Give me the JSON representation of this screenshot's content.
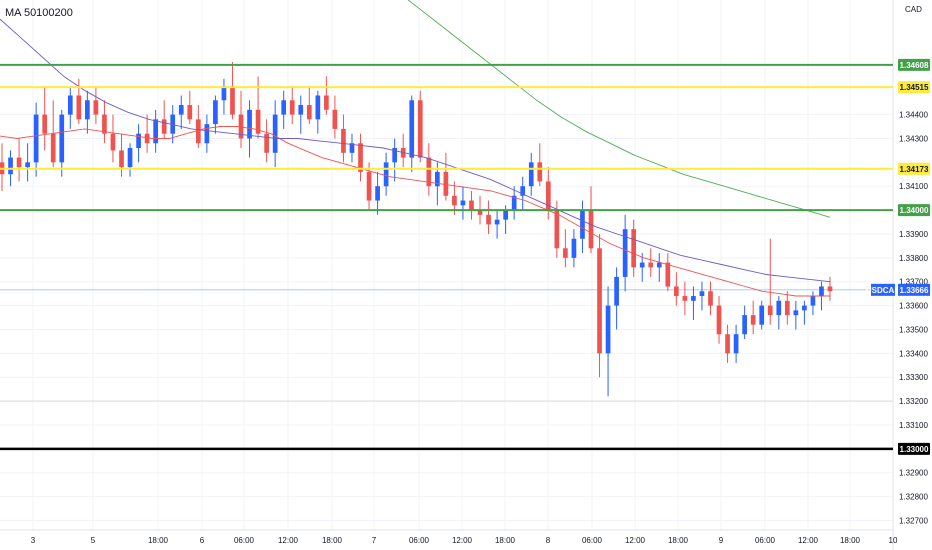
{
  "indicator_label": "MA 50100200",
  "currency_label": "CAD",
  "colors": {
    "bull": "#2962ff",
    "bear": "#ef5350",
    "ma50": "#ef5350",
    "ma100": "#6a5acd",
    "ma200": "#4caf50",
    "green_line": "#43a047",
    "yellow_line": "#ffeb3b",
    "black_line": "#000000",
    "price_tag": "#2962ff"
  },
  "chart_data": {
    "type": "candlestick",
    "symbol": "USDCAD",
    "last_price": "1.33666",
    "ylim": [
      1.3266,
      1.3488
    ],
    "y_ticks": [
      "1.34400",
      "1.34300",
      "1.34100",
      "1.33900",
      "1.33800",
      "1.33700",
      "1.33600",
      "1.33500",
      "1.33400",
      "1.33300",
      "1.33200",
      "1.33100",
      "1.32900",
      "1.32800",
      "1.32700"
    ],
    "x_ticks": [
      "3",
      "5",
      "18:00",
      "6",
      "06:00",
      "12:00",
      "18:00",
      "7",
      "06:00",
      "12:00",
      "18:00",
      "8",
      "06:00",
      "12:00",
      "18:00",
      "9",
      "06:00",
      "12:00",
      "18:00",
      "10"
    ],
    "horizontal_levels": [
      {
        "value": 1.34608,
        "label": "1.34608",
        "style": "green"
      },
      {
        "value": 1.34515,
        "label": "1.34515",
        "style": "yellow"
      },
      {
        "value": 1.34173,
        "label": "1.34173",
        "style": "yellow"
      },
      {
        "value": 1.34,
        "label": "1.34000",
        "style": "green"
      },
      {
        "value": 1.33,
        "label": "1.33000",
        "style": "black"
      }
    ],
    "candles": [
      [
        1.342,
        1.3428,
        1.3408,
        1.3415
      ],
      [
        1.3415,
        1.3425,
        1.341,
        1.3422
      ],
      [
        1.3422,
        1.343,
        1.3412,
        1.3418
      ],
      [
        1.3418,
        1.3428,
        1.3412,
        1.342
      ],
      [
        1.342,
        1.3445,
        1.3414,
        1.344
      ],
      [
        1.344,
        1.3452,
        1.3425,
        1.3432
      ],
      [
        1.3432,
        1.3446,
        1.3418,
        1.342
      ],
      [
        1.342,
        1.3442,
        1.3414,
        1.344
      ],
      [
        1.344,
        1.3452,
        1.3434,
        1.3448
      ],
      [
        1.3448,
        1.3455,
        1.3436,
        1.3438
      ],
      [
        1.3438,
        1.345,
        1.3432,
        1.3446
      ],
      [
        1.3446,
        1.3452,
        1.3436,
        1.344
      ],
      [
        1.344,
        1.3446,
        1.3428,
        1.3432
      ],
      [
        1.3432,
        1.344,
        1.342,
        1.3425
      ],
      [
        1.3425,
        1.3432,
        1.3414,
        1.3418
      ],
      [
        1.3418,
        1.3428,
        1.3414,
        1.3426
      ],
      [
        1.3426,
        1.3436,
        1.342,
        1.3432
      ],
      [
        1.3432,
        1.344,
        1.3424,
        1.3428
      ],
      [
        1.3428,
        1.3442,
        1.3424,
        1.3438
      ],
      [
        1.3438,
        1.3446,
        1.343,
        1.3432
      ],
      [
        1.3432,
        1.3444,
        1.3428,
        1.344
      ],
      [
        1.344,
        1.3448,
        1.3434,
        1.3444
      ],
      [
        1.3444,
        1.345,
        1.3436,
        1.3438
      ],
      [
        1.3438,
        1.3444,
        1.3426,
        1.3428
      ],
      [
        1.3428,
        1.344,
        1.3424,
        1.3436
      ],
      [
        1.3436,
        1.3448,
        1.3432,
        1.3446
      ],
      [
        1.3446,
        1.3455,
        1.344,
        1.3452
      ],
      [
        1.3452,
        1.3462,
        1.3438,
        1.344
      ],
      [
        1.344,
        1.345,
        1.3426,
        1.343
      ],
      [
        1.343,
        1.3446,
        1.3422,
        1.3442
      ],
      [
        1.3442,
        1.3456,
        1.343,
        1.3432
      ],
      [
        1.3432,
        1.3438,
        1.342,
        1.3424
      ],
      [
        1.3424,
        1.3446,
        1.3418,
        1.344
      ],
      [
        1.344,
        1.345,
        1.3434,
        1.3446
      ],
      [
        1.3446,
        1.3452,
        1.3436,
        1.344
      ],
      [
        1.344,
        1.3448,
        1.3432,
        1.3444
      ],
      [
        1.3444,
        1.3452,
        1.3436,
        1.3438
      ],
      [
        1.3438,
        1.345,
        1.3432,
        1.3448
      ],
      [
        1.3448,
        1.3456,
        1.344,
        1.3442
      ],
      [
        1.3442,
        1.3448,
        1.343,
        1.3434
      ],
      [
        1.3434,
        1.344,
        1.342,
        1.3424
      ],
      [
        1.3424,
        1.3432,
        1.342,
        1.3428
      ],
      [
        1.3428,
        1.3432,
        1.3412,
        1.3416
      ],
      [
        1.3416,
        1.342,
        1.34,
        1.3404
      ],
      [
        1.3404,
        1.3416,
        1.3398,
        1.341
      ],
      [
        1.341,
        1.3424,
        1.3406,
        1.342
      ],
      [
        1.342,
        1.343,
        1.3412,
        1.3426
      ],
      [
        1.3426,
        1.3432,
        1.3418,
        1.3422
      ],
      [
        1.3422,
        1.3448,
        1.3416,
        1.3446
      ],
      [
        1.3446,
        1.345,
        1.342,
        1.3422
      ],
      [
        1.3422,
        1.3428,
        1.3406,
        1.341
      ],
      [
        1.341,
        1.342,
        1.3402,
        1.3416
      ],
      [
        1.3416,
        1.3424,
        1.3404,
        1.3406
      ],
      [
        1.3406,
        1.3412,
        1.3398,
        1.3402
      ],
      [
        1.3402,
        1.341,
        1.3396,
        1.3404
      ],
      [
        1.3404,
        1.3408,
        1.3396,
        1.34
      ],
      [
        1.34,
        1.3406,
        1.3394,
        1.3398
      ],
      [
        1.3398,
        1.3404,
        1.339,
        1.3394
      ],
      [
        1.3394,
        1.34,
        1.3388,
        1.3396
      ],
      [
        1.3396,
        1.3402,
        1.339,
        1.34
      ],
      [
        1.34,
        1.341,
        1.3396,
        1.3406
      ],
      [
        1.3406,
        1.3414,
        1.34,
        1.341
      ],
      [
        1.341,
        1.3424,
        1.3406,
        1.342
      ],
      [
        1.342,
        1.3428,
        1.341,
        1.3412
      ],
      [
        1.3412,
        1.3418,
        1.3396,
        1.34
      ],
      [
        1.34,
        1.3404,
        1.338,
        1.3384
      ],
      [
        1.3384,
        1.3392,
        1.3376,
        1.338
      ],
      [
        1.338,
        1.3392,
        1.3376,
        1.3388
      ],
      [
        1.3388,
        1.3404,
        1.3382,
        1.34
      ],
      [
        1.34,
        1.341,
        1.3382,
        1.3384
      ],
      [
        1.3384,
        1.339,
        1.333,
        1.334
      ],
      [
        1.334,
        1.3368,
        1.3322,
        1.336
      ],
      [
        1.336,
        1.3376,
        1.335,
        1.3372
      ],
      [
        1.3372,
        1.3398,
        1.3366,
        1.3392
      ],
      [
        1.3392,
        1.3396,
        1.3372,
        1.3376
      ],
      [
        1.3376,
        1.3382,
        1.337,
        1.3378
      ],
      [
        1.3378,
        1.3384,
        1.3372,
        1.3376
      ],
      [
        1.3376,
        1.3382,
        1.337,
        1.3378
      ],
      [
        1.3378,
        1.3382,
        1.3366,
        1.3368
      ],
      [
        1.3368,
        1.3374,
        1.336,
        1.3364
      ],
      [
        1.3364,
        1.337,
        1.3356,
        1.3362
      ],
      [
        1.3362,
        1.3368,
        1.3354,
        1.3364
      ],
      [
        1.3364,
        1.337,
        1.3358,
        1.3366
      ],
      [
        1.3366,
        1.337,
        1.3356,
        1.336
      ],
      [
        1.336,
        1.3364,
        1.3344,
        1.3348
      ],
      [
        1.3348,
        1.3352,
        1.3336,
        1.334
      ],
      [
        1.334,
        1.3352,
        1.3336,
        1.3348
      ],
      [
        1.3348,
        1.336,
        1.3346,
        1.3356
      ],
      [
        1.3356,
        1.3362,
        1.3348,
        1.3352
      ],
      [
        1.3352,
        1.3362,
        1.335,
        1.336
      ],
      [
        1.336,
        1.3388,
        1.3352,
        1.3356
      ],
      [
        1.3356,
        1.3364,
        1.335,
        1.3362
      ],
      [
        1.3362,
        1.3366,
        1.3352,
        1.3356
      ],
      [
        1.3356,
        1.3362,
        1.335,
        1.3358
      ],
      [
        1.3358,
        1.3362,
        1.3352,
        1.336
      ],
      [
        1.336,
        1.3366,
        1.3356,
        1.3364
      ],
      [
        1.3364,
        1.337,
        1.3358,
        1.3368
      ],
      [
        1.3368,
        1.3372,
        1.3362,
        1.3366
      ]
    ],
    "ma50": [
      1.3431,
      1.343,
      1.3431,
      1.3432,
      1.3433,
      1.3434,
      1.3433,
      1.3432,
      1.3431,
      1.343,
      1.343,
      1.3432,
      1.3434,
      1.3435,
      1.3435,
      1.3434,
      1.3432,
      1.3428,
      1.3425,
      1.3422,
      1.342,
      1.3418,
      1.3416,
      1.3414,
      1.3413,
      1.3412,
      1.3411,
      1.341,
      1.3409,
      1.3408,
      1.3406,
      1.3404,
      1.3401,
      1.3398,
      1.3394,
      1.339,
      1.3386,
      1.3383,
      1.338,
      1.3378,
      1.3376,
      1.3374,
      1.3372,
      1.337,
      1.3368,
      1.3366,
      1.3365,
      1.3364,
      1.3364,
      1.3364
    ],
    "ma100": [
      1.348,
      1.3472,
      1.3464,
      1.3456,
      1.345,
      1.3445,
      1.3441,
      1.3438,
      1.3436,
      1.3434,
      1.3433,
      1.3432,
      1.3431,
      1.343,
      1.343,
      1.3429,
      1.3428,
      1.3427,
      1.3426,
      1.3424,
      1.3422,
      1.3419,
      1.3416,
      1.3413,
      1.3409,
      1.3405,
      1.3401,
      1.3397,
      1.3393,
      1.339,
      1.3387,
      1.3384,
      1.3381,
      1.3379,
      1.3377,
      1.3375,
      1.3373,
      1.3372,
      1.3371,
      1.337
    ],
    "ma200": [
      1.3494,
      1.3486,
      1.3478,
      1.347,
      1.3462,
      1.3454,
      1.3446,
      1.3439,
      1.3433,
      1.3428,
      1.3423,
      1.3419,
      1.3415,
      1.3412,
      1.3409,
      1.3406,
      1.3403,
      1.34,
      1.3397
    ],
    "price_line_value": 1.33666,
    "vertical_grid": [
      {
        "x_tick": "18:00",
        "value_time": true
      }
    ]
  }
}
